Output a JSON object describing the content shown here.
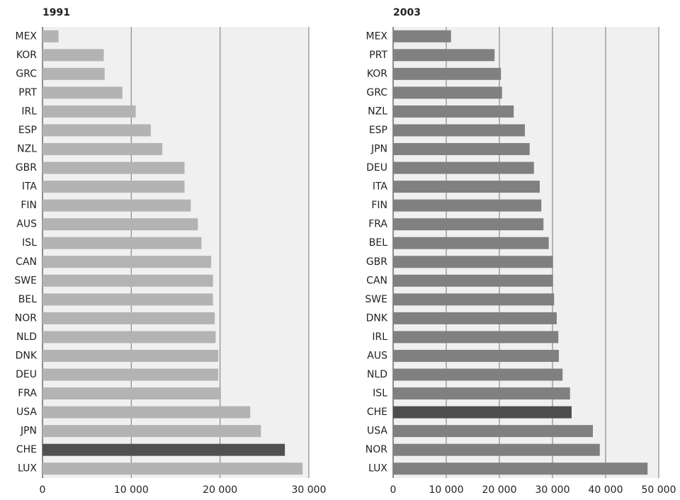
{
  "chart_data": [
    {
      "type": "barh",
      "title": "1991",
      "categories": [
        "MEX",
        "KOR",
        "GRC",
        "PRT",
        "IRL",
        "ESP",
        "NZL",
        "GBR",
        "ITA",
        "FIN",
        "AUS",
        "ISL",
        "CAN",
        "SWE",
        "BEL",
        "NOR",
        "NLD",
        "DNK",
        "DEU",
        "FRA",
        "USA",
        "JPN",
        "CHE",
        "LUX"
      ],
      "values": [
        1800,
        6900,
        7000,
        9000,
        10500,
        12200,
        13500,
        16000,
        16000,
        16700,
        17500,
        17900,
        19000,
        19200,
        19200,
        19400,
        19500,
        19800,
        19800,
        20100,
        23400,
        24600,
        27300,
        29300
      ],
      "colors": [
        "#b3b3b3",
        "#b3b3b3",
        "#b3b3b3",
        "#b3b3b3",
        "#b3b3b3",
        "#b3b3b3",
        "#b3b3b3",
        "#b3b3b3",
        "#b3b3b3",
        "#b3b3b3",
        "#b3b3b3",
        "#b3b3b3",
        "#b3b3b3",
        "#b3b3b3",
        "#b3b3b3",
        "#b3b3b3",
        "#b3b3b3",
        "#b3b3b3",
        "#b3b3b3",
        "#b3b3b3",
        "#b3b3b3",
        "#b3b3b3",
        "#505050",
        "#b3b3b3"
      ],
      "xlim": [
        0,
        30000
      ],
      "xticks": [
        0,
        {
          "value": 10000,
          "label": "10 000"
        },
        {
          "value": 20000,
          "label": "20 000"
        },
        {
          "value": 30000,
          "label": "30 000"
        }
      ],
      "grid": true
    },
    {
      "type": "barh",
      "title": "2003",
      "categories": [
        "MEX",
        "PRT",
        "KOR",
        "GRC",
        "NZL",
        "ESP",
        "JPN",
        "DEU",
        "ITA",
        "FIN",
        "FRA",
        "BEL",
        "GBR",
        "CAN",
        "SWE",
        "DNK",
        "IRL",
        "AUS",
        "NLD",
        "ISL",
        "CHE",
        "USA",
        "NOR",
        "LUX"
      ],
      "values": [
        10900,
        19100,
        20300,
        20500,
        22700,
        24800,
        25700,
        26500,
        27600,
        27900,
        28300,
        29300,
        30100,
        30100,
        30300,
        30800,
        31100,
        31200,
        31900,
        33300,
        33600,
        37600,
        38900,
        47900
      ],
      "colors": [
        "#808080",
        "#808080",
        "#808080",
        "#808080",
        "#808080",
        "#808080",
        "#808080",
        "#808080",
        "#808080",
        "#808080",
        "#808080",
        "#808080",
        "#808080",
        "#808080",
        "#808080",
        "#808080",
        "#808080",
        "#808080",
        "#808080",
        "#808080",
        "#4d4d4d",
        "#808080",
        "#808080",
        "#808080"
      ],
      "xlim": [
        0,
        50000
      ],
      "xticks": [
        0,
        {
          "value": 10000,
          "label": "10 000"
        },
        {
          "value": 20000,
          "label": "20 000"
        },
        {
          "value": 30000,
          "label": "30 000"
        },
        {
          "value": 40000,
          "label": "40 000"
        },
        {
          "value": 50000,
          "label": "50 000"
        }
      ],
      "grid": true
    }
  ]
}
